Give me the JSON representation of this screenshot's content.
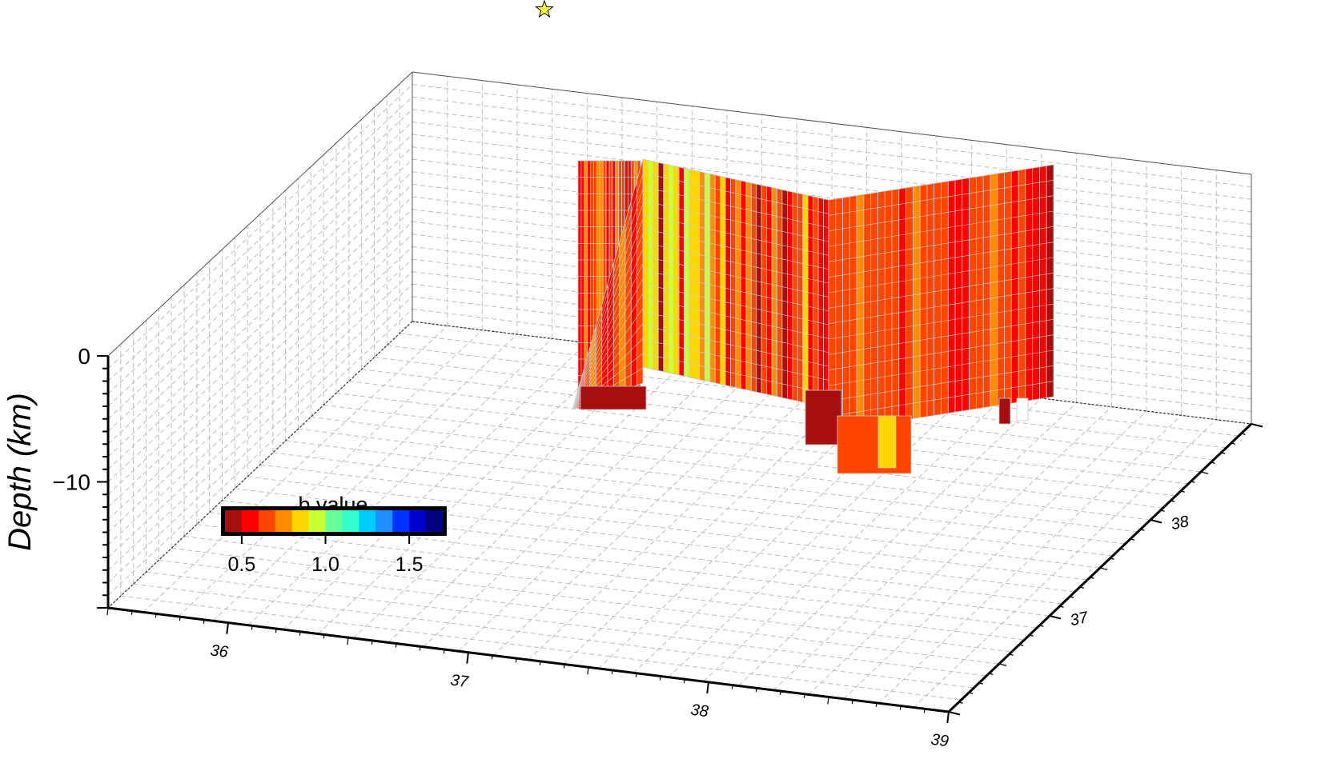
{
  "chart_data": {
    "type": "3d-fault-section",
    "zlabel": "Depth (km)",
    "z_ticks": [
      0,
      -10
    ],
    "x_ticks": [
      "36",
      "37",
      "38",
      "39"
    ],
    "y_ticks": [
      "37",
      "38"
    ],
    "xlim": [
      35.5,
      39.0
    ],
    "ylim": [
      36.0,
      39.0
    ],
    "zlim": [
      -20,
      0
    ],
    "grid": true,
    "epicenter_marker": "star",
    "colorbar": {
      "title": "b value",
      "ticks": [
        "0.5",
        "1.0",
        "1.5"
      ],
      "tick_values": [
        0.5,
        1.0,
        1.5
      ],
      "range": [
        0.4,
        1.7
      ],
      "colors": [
        "#a50f0f",
        "#ff0000",
        "#ff4500",
        "#ff8c00",
        "#ffd700",
        "#ccff33",
        "#66ff99",
        "#33ffcc",
        "#00ccff",
        "#1e90ff",
        "#0033ff",
        "#0000cc",
        "#000080"
      ]
    },
    "sections": [
      {
        "bottom_depth_km": -4.3,
        "strips": [
          0.6,
          0.58,
          0.72,
          0.55,
          0.66,
          0.62,
          0.7,
          0.75,
          0.68,
          0.6,
          0.64,
          0.58,
          0.7,
          0.66,
          0.62,
          0.6,
          0.56,
          0.62,
          0.7,
          0.64
        ]
      },
      {
        "bottom_depth_km": -4.3,
        "strips": [
          0.62,
          0.58,
          0.66,
          0.72,
          0.64,
          0.6,
          0.55,
          0.68,
          0.7,
          0.62,
          0.58,
          0.66
        ]
      },
      {
        "bottom_depth_km": -4.3,
        "strips": [
          0.85,
          0.9,
          0.8,
          0.45,
          0.88,
          0.92,
          0.84,
          0.55,
          0.95,
          0.86,
          0.8,
          0.78,
          0.9,
          0.74,
          0.68,
          0.82,
          0.6,
          0.66,
          0.72,
          0.6,
          0.7,
          0.64,
          0.45,
          0.62,
          0.58,
          0.7,
          0.62,
          0.48,
          0.6,
          0.66,
          0.62,
          0.8,
          0.58,
          0.64,
          0.6,
          0.56
        ]
      },
      {
        "bottom_depth_km": -16,
        "strips": [
          0.62,
          0.64,
          0.62,
          0.66,
          0.7,
          0.62,
          0.64,
          0.66,
          0.68,
          0.62,
          0.6,
          0.64,
          0.7,
          0.68,
          0.66,
          0.64,
          0.62,
          0.6,
          0.58,
          0.6,
          0.62,
          0.66,
          0.68,
          0.7,
          0.64,
          0.62,
          0.6,
          0.62,
          0.58,
          0.56,
          0.52,
          0.48
        ]
      }
    ]
  }
}
